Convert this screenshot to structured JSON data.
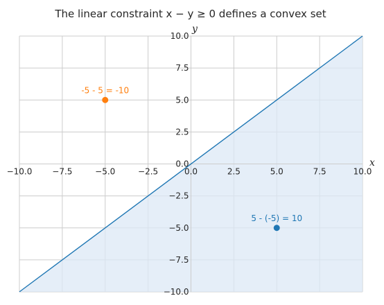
{
  "chart_data": {
    "type": "line",
    "title": "The linear constraint x − y ≥ 0 defines a convex set",
    "xlabel": "x",
    "ylabel": "y",
    "xlim": [
      -10,
      10
    ],
    "ylim": [
      -10,
      10
    ],
    "xticks": [
      -10,
      -7.5,
      -5,
      -2.5,
      0,
      2.5,
      5,
      7.5,
      10
    ],
    "yticks": [
      -10,
      -7.5,
      -5,
      -2.5,
      0,
      2.5,
      5,
      7.5,
      10
    ],
    "xtick_labels": [
      "−10.0",
      "−7.5",
      "−5.0",
      "−2.5",
      "0.0",
      "2.5",
      "5.0",
      "7.5",
      "10.0"
    ],
    "ytick_labels": [
      "−10.0",
      "−7.5",
      "−5.0",
      "−2.5",
      "0.0",
      "2.5",
      "5.0",
      "7.5",
      "10.0"
    ],
    "grid": true,
    "boundary_line": {
      "x": [
        -10,
        10
      ],
      "y": [
        -10,
        10
      ],
      "color": "#1f77b4"
    },
    "shaded_region": {
      "polygon": [
        [
          -10,
          -10
        ],
        [
          10,
          10
        ],
        [
          10,
          -10
        ]
      ],
      "color": "#dce8f5"
    },
    "points": [
      {
        "x": -5,
        "y": 5,
        "label": "-5 - 5 = -10",
        "color": "#ff7f0e"
      },
      {
        "x": 5,
        "y": -5,
        "label": "5 - (-5) = 10",
        "color": "#1f77b4"
      }
    ],
    "colors": {
      "grid": "#cccccc",
      "text": "#262626"
    }
  }
}
